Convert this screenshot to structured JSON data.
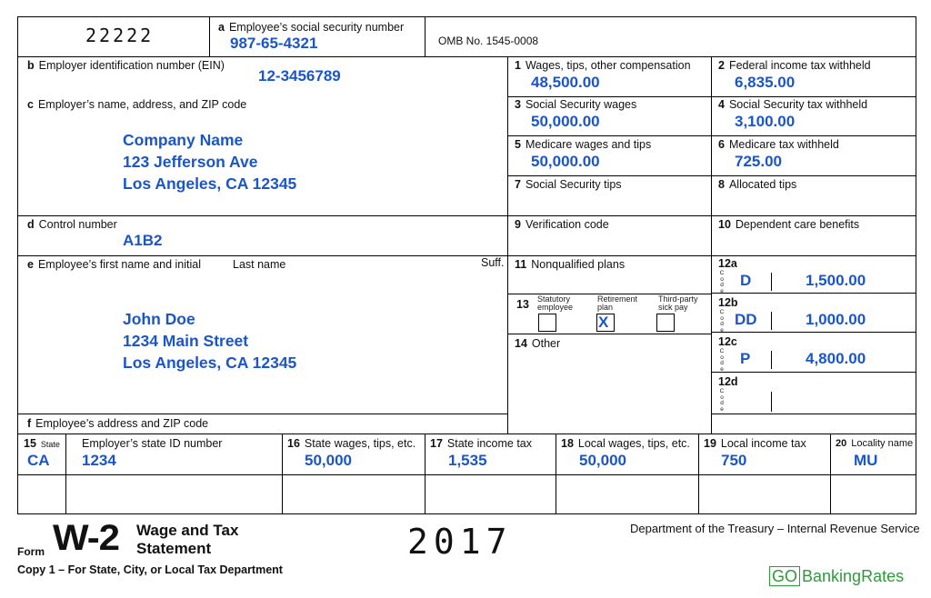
{
  "box_top": {
    "control_code": "22222",
    "ssn_label_letter": "a",
    "ssn_label": "Employee’s social security number",
    "ssn_value": "987-65-4321",
    "omb": "OMB No. 1545-0008"
  },
  "left": {
    "b_letter": "b",
    "b_label": "Employer identification number (EIN)",
    "b_value": "12-3456789",
    "c_letter": "c",
    "c_label": "Employer’s name, address, and ZIP code",
    "c_lines": [
      "Company Name",
      "123 Jefferson Ave",
      "Los Angeles, CA 12345"
    ],
    "d_letter": "d",
    "d_label": "Control number",
    "d_value": "A1B2",
    "e_letter": "e",
    "e_label": "Employee’s first name and initial",
    "e_last": "Last name",
    "e_suff": "Suff.",
    "e_lines": [
      "John Doe",
      "1234 Main Street",
      "Los Angeles, CA 12345"
    ],
    "f_letter": "f",
    "f_label": "Employee’s address and ZIP code"
  },
  "boxes": {
    "b1_num": "1",
    "b1_label": "Wages, tips, other compensation",
    "b1_value": "48,500.00",
    "b2_num": "2",
    "b2_label": "Federal income tax withheld",
    "b2_value": "6,835.00",
    "b3_num": "3",
    "b3_label": "Social Security wages",
    "b3_value": "50,000.00",
    "b4_num": "4",
    "b4_label": "Social Security tax withheld",
    "b4_value": "3,100.00",
    "b5_num": "5",
    "b5_label": "Medicare wages and tips",
    "b5_value": "50,000.00",
    "b6_num": "6",
    "b6_label": "Medicare tax withheld",
    "b6_value": "725.00",
    "b7_num": "7",
    "b7_label": "Social Security tips",
    "b8_num": "8",
    "b8_label": "Allocated tips",
    "b9_num": "9",
    "b9_label": "Verification code",
    "b10_num": "10",
    "b10_label": "Dependent care benefits",
    "b11_num": "11",
    "b11_label": "Nonqualified plans",
    "b13_num": "13",
    "b13_statutory": [
      "Statutory",
      "employee"
    ],
    "b13_retirement": [
      "Retirement",
      "plan"
    ],
    "b13_thirdparty": [
      "Third-party",
      "sick pay"
    ],
    "b13_retirement_mark": "X",
    "b14_num": "14",
    "b14_label": "Other",
    "code_letters": [
      "C",
      "o",
      "d",
      "e"
    ],
    "b12a_num": "12a",
    "b12a_code": "D",
    "b12a_value": "1,500.00",
    "b12b_num": "12b",
    "b12b_code": "DD",
    "b12b_value": "1,000.00",
    "b12c_num": "12c",
    "b12c_code": "P",
    "b12c_value": "4,800.00",
    "b12d_num": "12d"
  },
  "state_row": {
    "b15_num": "15",
    "b15_state_label": "State",
    "b15_id_label": "Employer’s state ID number",
    "b15_state": "CA",
    "b15_id": "1234",
    "b16_num": "16",
    "b16_label": "State wages, tips, etc.",
    "b16_value": "50,000",
    "b17_num": "17",
    "b17_label": "State income tax",
    "b17_value": "1,535",
    "b18_num": "18",
    "b18_label": "Local wages, tips, etc.",
    "b18_value": "50,000",
    "b19_num": "19",
    "b19_label": "Local income tax",
    "b19_value": "750",
    "b20_num": "20",
    "b20_label": "Locality name",
    "b20_value": "MU"
  },
  "footer": {
    "form_word": "Form",
    "form_name": "W-2",
    "title_line1": "Wage and Tax",
    "title_line2": "Statement",
    "year": "2017",
    "copy": "Copy 1 – For State, City, or Local Tax Department",
    "department": "Department of the Treasury – Internal Revenue Service",
    "brand_go": "GO",
    "brand_rest": "BankingRates"
  },
  "colors": {
    "value_blue": "#1a56c8",
    "brand_green": "#2f9a3c"
  }
}
